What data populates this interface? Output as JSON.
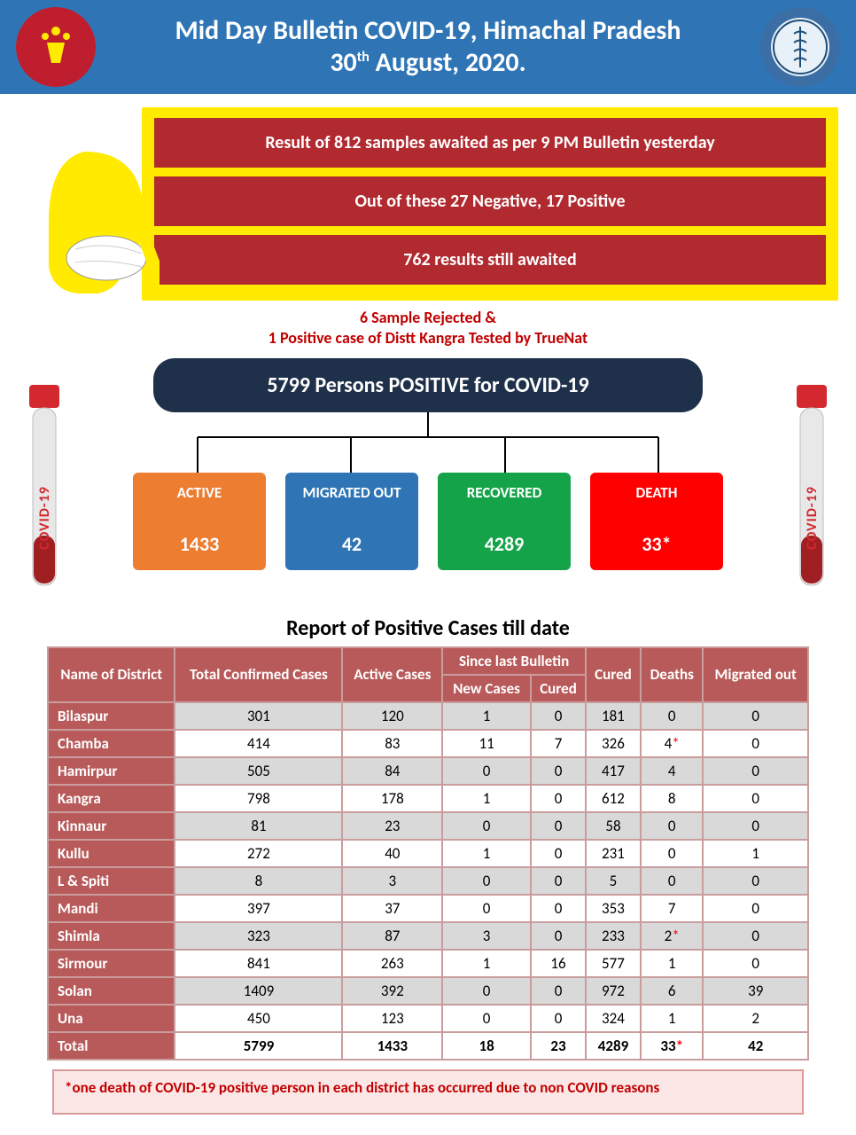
{
  "header": {
    "title_l1": "Mid Day Bulletin COVID-19, Himachal Pradesh",
    "title_l2_pre": "30",
    "title_l2_sup": "th",
    "title_l2_post": " August, 2020."
  },
  "callout": {
    "line1": "Result  of  812 samples awaited as per 9 PM Bulletin yesterday",
    "line2": "Out of these 27 Negative, 17 Positive",
    "line3": "762 results still awaited"
  },
  "note": {
    "line1": "6 Sample Rejected &",
    "line2": "1 Positive case of Distt Kangra Tested by TrueNat"
  },
  "tube_label": "COVID-19",
  "total_box": "5799 Persons POSITIVE for COVID-19",
  "stats": {
    "active": {
      "label": "ACTIVE",
      "value": "1433",
      "color": "#ed7d31"
    },
    "migrated": {
      "label": "MIGRATED OUT",
      "value": "42",
      "color": "#2f75b5"
    },
    "recovered": {
      "label": "RECOVERED",
      "value": "4289",
      "color": "#15a34a"
    },
    "death": {
      "label": "DEATH",
      "value": "33*",
      "color": "#ff0000"
    }
  },
  "table_title": "Report of Positive Cases till date",
  "columns": {
    "c0": "Name of District",
    "c1": "Total Confirmed Cases",
    "c2": "Active Cases",
    "c3_group": "Since last Bulletin",
    "c3a": "New Cases",
    "c3b": "Cured",
    "c4": "Cured",
    "c5": "Deaths",
    "c6": "Migrated out"
  },
  "rows": [
    {
      "d": "Bilaspur",
      "v": [
        "301",
        "120",
        "1",
        "0",
        "181",
        "0",
        "0"
      ],
      "alt": true,
      "star": false
    },
    {
      "d": "Chamba",
      "v": [
        "414",
        "83",
        "11",
        "7",
        "326",
        "4",
        "0"
      ],
      "alt": false,
      "star": true
    },
    {
      "d": "Hamirpur",
      "v": [
        "505",
        "84",
        "0",
        "0",
        "417",
        "4",
        "0"
      ],
      "alt": true,
      "star": false
    },
    {
      "d": "Kangra",
      "v": [
        "798",
        "178",
        "1",
        "0",
        "612",
        "8",
        "0"
      ],
      "alt": false,
      "star": false
    },
    {
      "d": "Kinnaur",
      "v": [
        "81",
        "23",
        "0",
        "0",
        "58",
        "0",
        "0"
      ],
      "alt": true,
      "star": false
    },
    {
      "d": "Kullu",
      "v": [
        "272",
        "40",
        "1",
        "0",
        "231",
        "0",
        "1"
      ],
      "alt": false,
      "star": false
    },
    {
      "d": "L & Spiti",
      "v": [
        "8",
        "3",
        "0",
        "0",
        "5",
        "0",
        "0"
      ],
      "alt": true,
      "star": false
    },
    {
      "d": "Mandi",
      "v": [
        "397",
        "37",
        "0",
        "0",
        "353",
        "7",
        "0"
      ],
      "alt": false,
      "star": false
    },
    {
      "d": "Shimla",
      "v": [
        "323",
        "87",
        "3",
        "0",
        "233",
        "2",
        "0"
      ],
      "alt": true,
      "star": true
    },
    {
      "d": "Sirmour",
      "v": [
        "841",
        "263",
        "1",
        "16",
        "577",
        "1",
        "0"
      ],
      "alt": false,
      "star": false
    },
    {
      "d": "Solan",
      "v": [
        "1409",
        "392",
        "0",
        "0",
        "972",
        "6",
        "39"
      ],
      "alt": true,
      "star": false
    },
    {
      "d": "Una",
      "v": [
        "450",
        "123",
        "0",
        "0",
        "324",
        "1",
        "2"
      ],
      "alt": false,
      "star": false
    }
  ],
  "total_row": {
    "d": "Total",
    "v": [
      "5799",
      "1433",
      "18",
      "23",
      "4289",
      "33",
      "42"
    ],
    "star": true
  },
  "footnote": "*one death of COVID-19 positive person in each district has occurred due to non COVID reasons"
}
